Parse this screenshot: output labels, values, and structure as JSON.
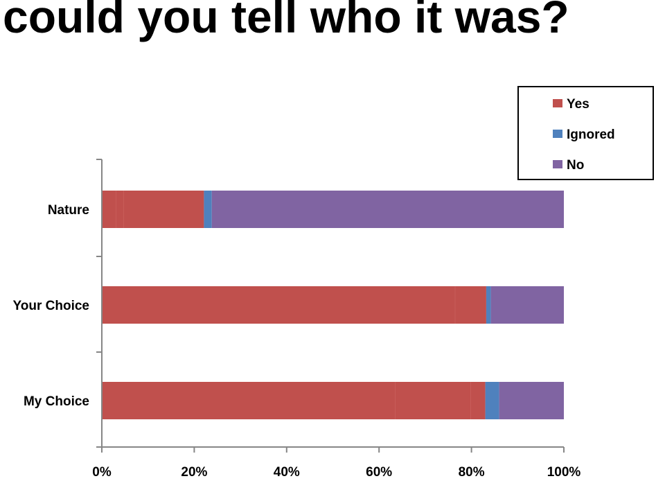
{
  "slide": {
    "title": "could you tell who it was?"
  },
  "chart_data": {
    "type": "bar",
    "orientation": "horizontal",
    "stacked": true,
    "percent_stacked": true,
    "title": "",
    "xlabel": "",
    "ylabel": "",
    "categories": [
      "My Choice",
      "Your Choice",
      "Nature"
    ],
    "series": [
      {
        "name": "Yes",
        "color": "#C0504D",
        "segments": [
          [
            63.5,
            16.4,
            3.1
          ],
          [
            76.5,
            6.7
          ],
          [
            3.1,
            1.7,
            17.3
          ]
        ],
        "values": [
          83.0,
          83.2,
          22.1
        ]
      },
      {
        "name": "Ignored",
        "color": "#4F81BD",
        "values": [
          3.0,
          1.0,
          1.7
        ]
      },
      {
        "name": "No",
        "color": "#8064A2",
        "values": [
          14.0,
          15.8,
          76.2
        ]
      }
    ],
    "xlim": [
      0,
      100
    ],
    "x_ticks": [
      "0%",
      "20%",
      "40%",
      "60%",
      "80%",
      "100%"
    ],
    "grid": false,
    "legend_position": "top-right"
  }
}
